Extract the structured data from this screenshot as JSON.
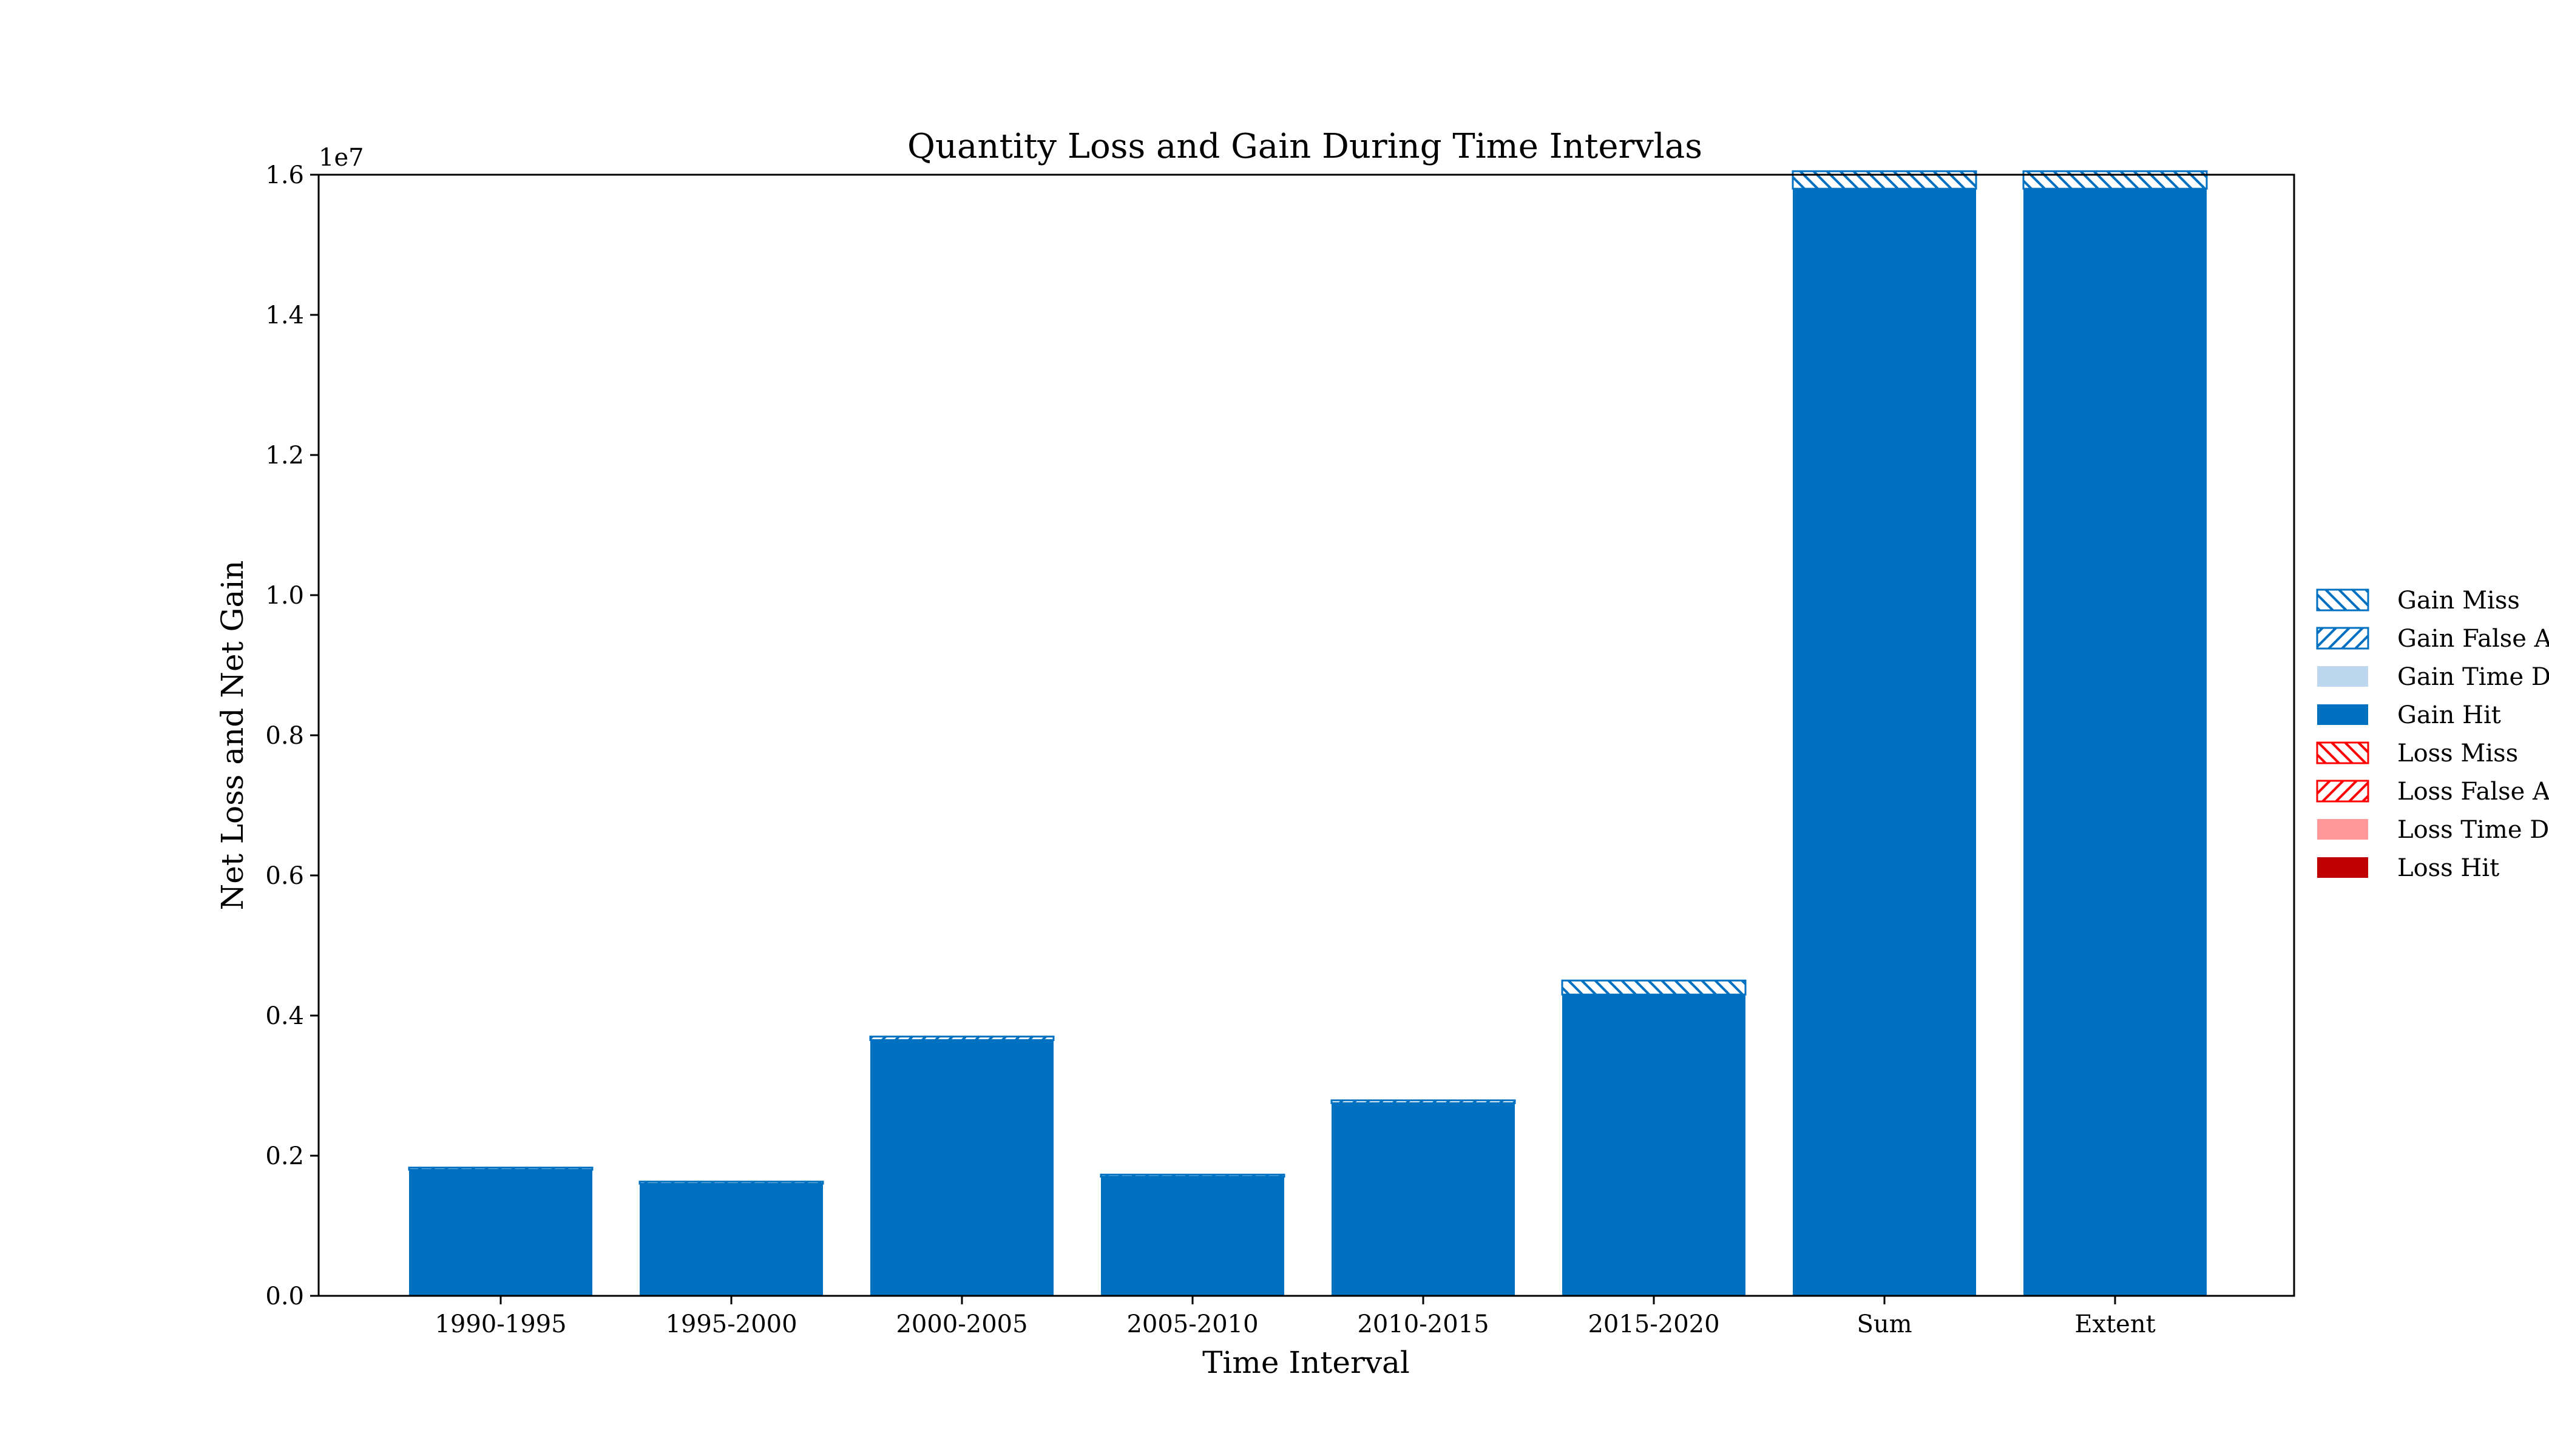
{
  "chart_data": {
    "type": "bar",
    "title": "Quantity Loss and Gain During Time Intervlas",
    "xlabel": "Time Interval",
    "ylabel": "Net Loss and Net Gain",
    "y_offset_label": "1e7",
    "ylim": [
      0,
      16000000
    ],
    "y_ticks": [
      0,
      2000000,
      4000000,
      6000000,
      8000000,
      10000000,
      12000000,
      14000000,
      16000000
    ],
    "y_tick_labels": [
      "0.0",
      "0.2",
      "0.4",
      "0.6",
      "0.8",
      "1.0",
      "1.2",
      "1.4",
      "1.6"
    ],
    "categories": [
      "1990-1995",
      "1995-2000",
      "2000-2005",
      "2005-2010",
      "2010-2015",
      "2015-2020",
      "Sum",
      "Extent"
    ],
    "stack_order": [
      "Gain Hit",
      "Gain Time Difference",
      "Gain False Alarm",
      "Gain Miss"
    ],
    "series": [
      {
        "name": "Gain Hit",
        "color": "#0070c0",
        "pattern": "solid",
        "values": [
          1800000,
          1600000,
          3650000,
          1700000,
          2750000,
          4300000,
          15800000,
          15800000
        ]
      },
      {
        "name": "Gain Time Difference",
        "color": "#bdd7ee",
        "pattern": "solid",
        "values": [
          0,
          0,
          0,
          0,
          0,
          0,
          0,
          0
        ]
      },
      {
        "name": "Gain False Alarm",
        "color": "#0070c0",
        "pattern": "hatch-forward",
        "values": [
          30000,
          30000,
          50000,
          30000,
          40000,
          0,
          0,
          0
        ]
      },
      {
        "name": "Gain Miss",
        "color": "#0070c0",
        "pattern": "hatch-back",
        "values": [
          0,
          0,
          0,
          0,
          0,
          200000,
          250000,
          250000
        ]
      },
      {
        "name": "Loss Miss",
        "color": "#ff0000",
        "pattern": "hatch-back",
        "values": [
          0,
          0,
          0,
          0,
          0,
          0,
          0,
          0
        ]
      },
      {
        "name": "Loss False Alarm",
        "color": "#ff0000",
        "pattern": "hatch-forward",
        "values": [
          0,
          0,
          0,
          0,
          0,
          0,
          0,
          0
        ]
      },
      {
        "name": "Loss Time Difference",
        "color": "#ff9999",
        "pattern": "solid",
        "values": [
          0,
          0,
          0,
          0,
          0,
          0,
          0,
          0
        ]
      },
      {
        "name": "Loss Hit",
        "color": "#c00000",
        "pattern": "solid",
        "values": [
          0,
          0,
          0,
          0,
          0,
          0,
          0,
          0
        ]
      }
    ],
    "legend": {
      "placement": "right-outside",
      "entries": [
        {
          "label": "Gain Miss",
          "color": "#0070c0",
          "pattern": "hatch-back"
        },
        {
          "label": "Gain False Alarm",
          "color": "#0070c0",
          "pattern": "hatch-forward"
        },
        {
          "label": "Gain Time Difference",
          "color": "#bdd7ee",
          "pattern": "solid"
        },
        {
          "label": "Gain Hit",
          "color": "#0070c0",
          "pattern": "solid"
        },
        {
          "label": "Loss Miss",
          "color": "#ff0000",
          "pattern": "hatch-back"
        },
        {
          "label": "Loss False Alarm",
          "color": "#ff0000",
          "pattern": "hatch-forward"
        },
        {
          "label": "Loss Time Difference",
          "color": "#ff9999",
          "pattern": "solid"
        },
        {
          "label": "Loss Hit",
          "color": "#c00000",
          "pattern": "solid"
        }
      ]
    },
    "grid": false
  }
}
